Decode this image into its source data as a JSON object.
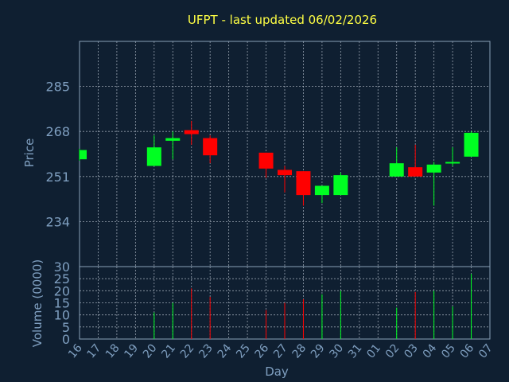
{
  "chart_data": {
    "type": "candlestick",
    "title": "UFPT - last updated 06/02/2026",
    "xlabel": "Day",
    "ylabel": "Price",
    "volume_label": "Volume (0000)",
    "x_ticks": [
      "16",
      "17",
      "18",
      "19",
      "20",
      "21",
      "22",
      "23",
      "24",
      "25",
      "26",
      "27",
      "28",
      "29",
      "30",
      "31",
      "01",
      "02",
      "03",
      "04",
      "05",
      "06",
      "07"
    ],
    "price_ticks": [
      234,
      251,
      268,
      285
    ],
    "price_range": [
      217,
      302
    ],
    "volume_ticks": [
      0,
      5,
      10,
      15,
      20,
      25,
      30
    ],
    "volume_range": [
      0,
      30
    ],
    "grid": true,
    "colors": {
      "up": "#00ff22",
      "down": "#ff0000",
      "title": "#ffff44",
      "axis_text": "#7f9fc0"
    },
    "candles": [
      {
        "x": 0,
        "open": 257.5,
        "close": 261.0,
        "high": 261.5,
        "low": 257.0,
        "volume": null
      },
      {
        "x": 4,
        "open": 255.0,
        "close": 262.0,
        "high": 266.5,
        "low": 255.0,
        "volume": 11
      },
      {
        "x": 5,
        "open": 264.5,
        "close": 265.5,
        "high": 268.0,
        "low": 257.5,
        "volume": 15
      },
      {
        "x": 6,
        "open": 268.5,
        "close": 267.0,
        "high": 272.0,
        "low": 263.0,
        "volume": 21
      },
      {
        "x": 7,
        "open": 265.5,
        "close": 259.0,
        "high": 266.5,
        "low": 256.0,
        "volume": 17.5
      },
      {
        "x": 10,
        "open": 260.0,
        "close": 254.0,
        "high": 260.0,
        "low": 250.5,
        "volume": 12
      },
      {
        "x": 11,
        "open": 253.5,
        "close": 251.5,
        "high": 255.0,
        "low": 245.0,
        "volume": 15
      },
      {
        "x": 12,
        "open": 253.0,
        "close": 244.0,
        "high": 253.0,
        "low": 240.0,
        "volume": 16.5
      },
      {
        "x": 13,
        "open": 244.0,
        "close": 247.5,
        "high": 247.5,
        "low": 241.0,
        "volume": 18.5
      },
      {
        "x": 14,
        "open": 244.0,
        "close": 251.5,
        "high": 252.5,
        "low": 244.0,
        "volume": 20
      },
      {
        "x": 17,
        "open": 251.0,
        "close": 256.0,
        "high": 262.0,
        "low": 251.0,
        "volume": 13
      },
      {
        "x": 18,
        "open": 254.5,
        "close": 251.0,
        "high": 263.0,
        "low": 251.0,
        "volume": 19.5
      },
      {
        "x": 19,
        "open": 252.5,
        "close": 255.5,
        "high": 256.5,
        "low": 240.0,
        "volume": 20
      },
      {
        "x": 20,
        "open": 256.0,
        "close": 256.5,
        "high": 262.0,
        "low": 255.0,
        "volume": 13.5
      },
      {
        "x": 21,
        "open": 258.5,
        "close": 267.5,
        "high": 268.0,
        "low": 258.5,
        "volume": 27
      }
    ]
  }
}
